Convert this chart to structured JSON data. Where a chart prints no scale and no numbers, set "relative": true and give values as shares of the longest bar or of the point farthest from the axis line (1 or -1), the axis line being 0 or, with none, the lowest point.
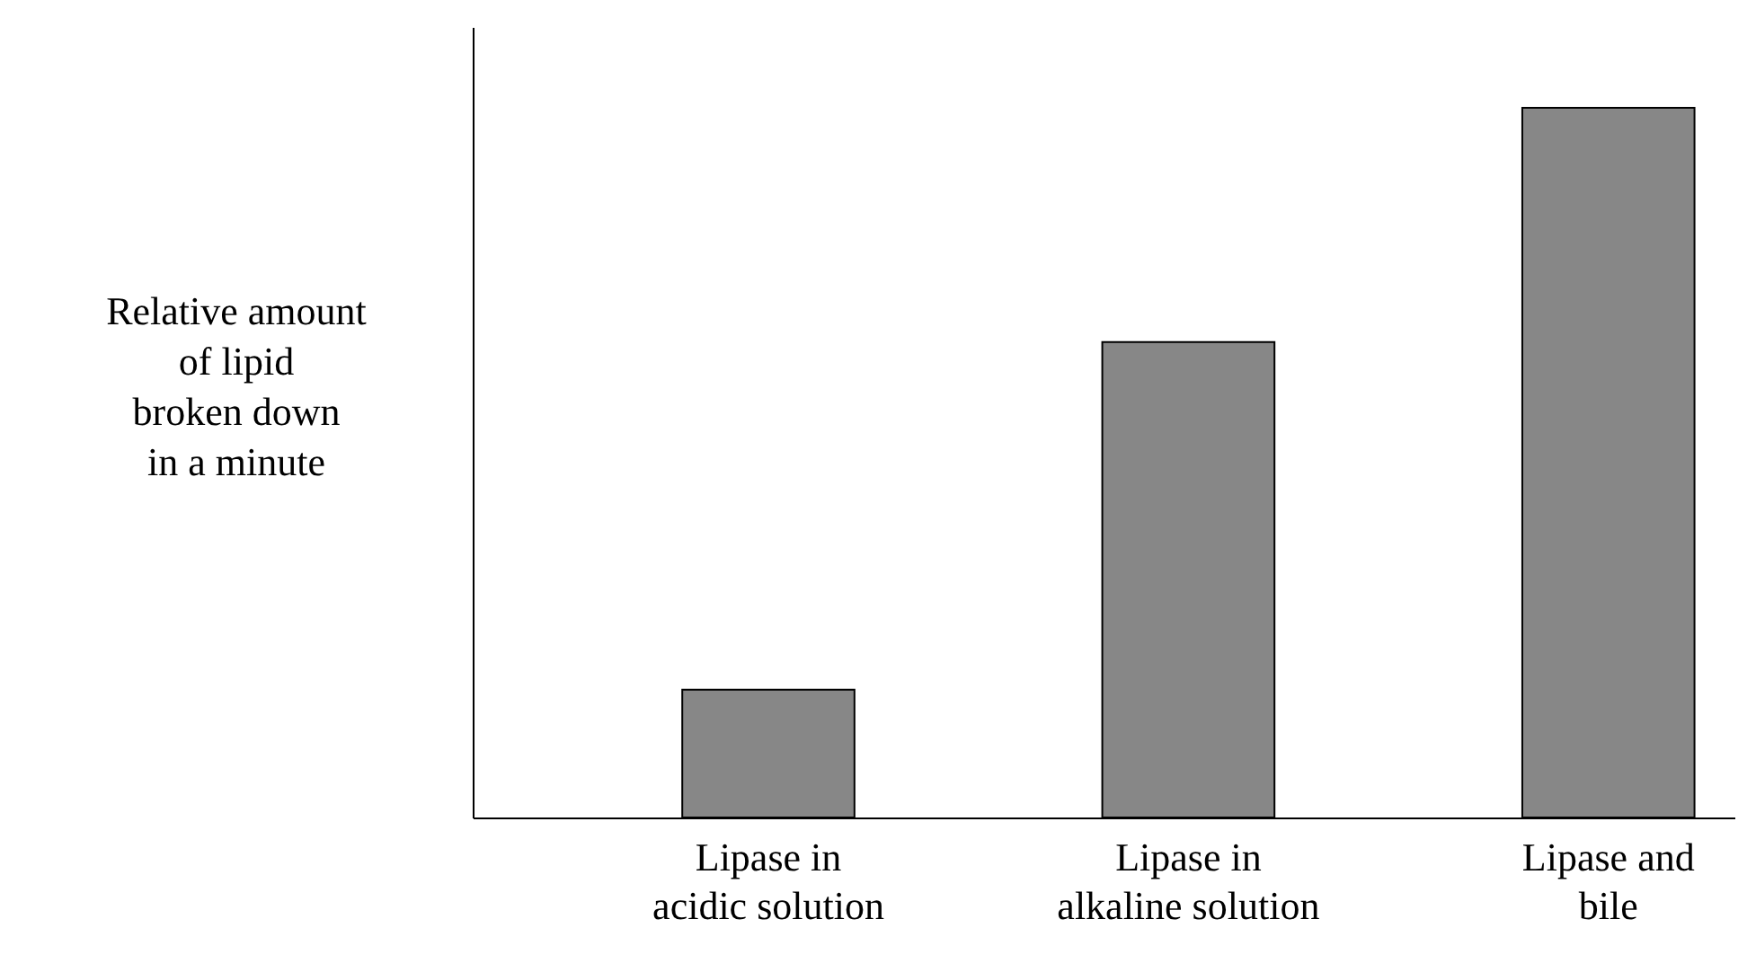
{
  "chart_data": {
    "type": "bar",
    "relative": true,
    "ylabel": "Relative amount\nof lipid\nbroken down\nin a minute",
    "categories": [
      "Lipase in\nacidic solution",
      "Lipase in\nalkaline solution",
      "Lipase and\nbile"
    ],
    "values": [
      0.18,
      0.67,
      1.0
    ],
    "color": "#878787",
    "grid": false
  }
}
